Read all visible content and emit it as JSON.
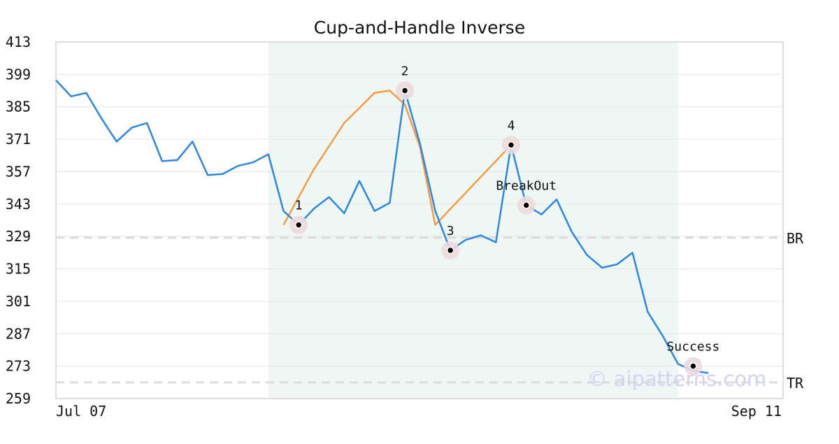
{
  "chart_data": {
    "type": "line",
    "title": "Cup-and-Handle Inverse",
    "x_tick_labels": [
      "Jul 07",
      "Sep 11"
    ],
    "ylim": [
      259,
      413
    ],
    "y_ticks": [
      413,
      399,
      385,
      371,
      357,
      343,
      329,
      315,
      301,
      287,
      273,
      259
    ],
    "grid": true,
    "price_series": {
      "values": [
        396.5,
        389.5,
        391,
        380,
        370,
        376,
        378,
        361.5,
        362,
        370,
        355.5,
        356,
        359.5,
        361,
        364.5,
        340,
        334,
        341,
        346,
        339,
        353,
        340,
        343.5,
        392,
        369,
        340,
        323,
        327.5,
        329.5,
        326.5,
        368.5,
        342.5,
        338.5,
        345,
        331,
        321,
        315.5,
        317,
        322,
        296.5,
        286,
        274,
        271,
        270
      ],
      "color": "#2e86de"
    },
    "pattern_series": {
      "values": [
        [
          15,
          334
        ],
        [
          17,
          358
        ],
        [
          19,
          378
        ],
        [
          21,
          391
        ],
        [
          22,
          392
        ],
        [
          23,
          386
        ],
        [
          24,
          367.5
        ],
        [
          25,
          334
        ],
        [
          30,
          368.5
        ]
      ],
      "color": "#f39c45"
    },
    "highlight_range": [
      14,
      41
    ],
    "highlight_color": "#eef7f3",
    "reference_lines": [
      {
        "label": "BR",
        "value": 328.5
      },
      {
        "label": "TR",
        "value": 266
      }
    ],
    "annotations": [
      {
        "label": "1",
        "index": 16,
        "value": 334,
        "label_pos": "above"
      },
      {
        "label": "2",
        "index": 23,
        "value": 392,
        "label_pos": "above"
      },
      {
        "label": "3",
        "index": 26,
        "value": 323,
        "label_pos": "above"
      },
      {
        "label": "4",
        "index": 30,
        "value": 368.5,
        "label_pos": "above"
      },
      {
        "label": "BreakOut",
        "index": 31,
        "value": 342.5,
        "label_pos": "above"
      },
      {
        "label": "Success",
        "index": 42,
        "value": 273,
        "label_pos": "above"
      }
    ],
    "watermark": "© aipatterns.com"
  }
}
